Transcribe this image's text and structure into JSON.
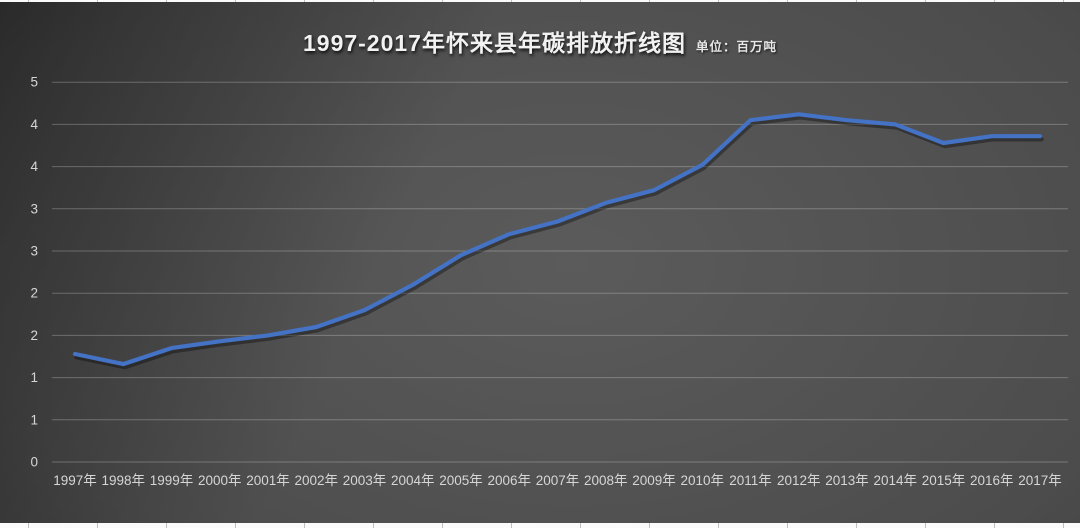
{
  "header": {
    "title": "1997-2017年怀来县年碳排放折线图",
    "unit_label": "单位：百万吨"
  },
  "chart_data": {
    "type": "line",
    "title": "1997-2017年怀来县年碳排放折线图",
    "unit": "百万吨",
    "categories": [
      "1997年",
      "1998年",
      "1999年",
      "2000年",
      "2001年",
      "2002年",
      "2003年",
      "2004年",
      "2005年",
      "2006年",
      "2007年",
      "2008年",
      "2009年",
      "2010年",
      "2011年",
      "2012年",
      "2013年",
      "2014年",
      "2015年",
      "2016年",
      "2017年"
    ],
    "values": [
      1.28,
      1.16,
      1.35,
      1.43,
      1.5,
      1.6,
      1.8,
      2.1,
      2.45,
      2.7,
      2.85,
      3.07,
      3.22,
      3.52,
      4.05,
      4.12,
      4.05,
      4.0,
      3.78,
      3.86,
      3.86
    ],
    "ylim": [
      0,
      4.5
    ],
    "y_tick_values": [
      0,
      0.5,
      1,
      1.5,
      2,
      2.5,
      3,
      3.5,
      4,
      4.5
    ],
    "y_tick_labels": [
      "0",
      "1",
      "1",
      "2",
      "2",
      "3",
      "3",
      "4",
      "4",
      "5"
    ],
    "grid": true,
    "legend": "none",
    "colors": {
      "line": "#4472c4",
      "line_shadow": "rgba(0,0,0,0.35)",
      "gridline": "rgba(255,255,255,0.25)",
      "axis_label": "#d6d6d6",
      "background_center": "#5b5b5b",
      "background_edge": "#1f1f1f"
    }
  }
}
